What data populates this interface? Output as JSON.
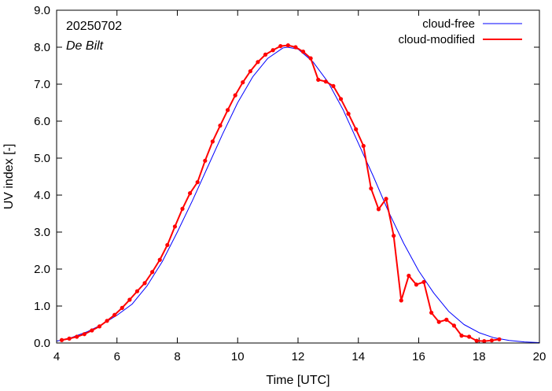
{
  "chart_data": {
    "type": "line",
    "xlabel": "Time  [UTC]",
    "ylabel": "UV index  [-]",
    "xlim": [
      4,
      20
    ],
    "ylim": [
      0,
      9
    ],
    "x_ticks": [
      4,
      6,
      8,
      10,
      12,
      14,
      16,
      18,
      20
    ],
    "y_ticks": [
      "0.0",
      "1.0",
      "2.0",
      "3.0",
      "4.0",
      "5.0",
      "6.0",
      "7.0",
      "8.0",
      "9.0"
    ],
    "grid": false,
    "legend_position": "top-right",
    "annotations": {
      "date": "20250702",
      "location": "De Bilt"
    },
    "series": [
      {
        "name": "cloud-free",
        "color": "#0000ff",
        "style": "smooth-line",
        "peak_x": 11.65,
        "peak_y": 8.0,
        "x": [
          4.0,
          4.5,
          5.0,
          5.5,
          6.0,
          6.5,
          7.0,
          7.5,
          8.0,
          8.5,
          9.0,
          9.5,
          10.0,
          10.5,
          11.0,
          11.5,
          11.65,
          12.0,
          12.5,
          13.0,
          13.5,
          14.0,
          14.5,
          15.0,
          15.5,
          16.0,
          16.5,
          17.0,
          17.5,
          18.0,
          18.5,
          19.0,
          19.5,
          20.0
        ],
        "y": [
          0.05,
          0.15,
          0.3,
          0.5,
          0.75,
          1.05,
          1.55,
          2.2,
          3.0,
          3.85,
          4.75,
          5.65,
          6.5,
          7.2,
          7.7,
          7.98,
          8.0,
          7.95,
          7.6,
          7.05,
          6.3,
          5.4,
          4.5,
          3.55,
          2.7,
          1.95,
          1.35,
          0.85,
          0.5,
          0.28,
          0.14,
          0.07,
          0.03,
          0.01
        ]
      },
      {
        "name": "cloud-modified",
        "color": "#ff0000",
        "style": "line-points",
        "x": [
          4.17,
          4.42,
          4.67,
          4.92,
          5.17,
          5.42,
          5.67,
          5.92,
          6.17,
          6.42,
          6.67,
          6.92,
          7.17,
          7.42,
          7.67,
          7.92,
          8.17,
          8.42,
          8.67,
          8.92,
          9.17,
          9.42,
          9.67,
          9.92,
          10.17,
          10.42,
          10.67,
          10.92,
          11.17,
          11.42,
          11.67,
          11.92,
          12.17,
          12.42,
          12.67,
          12.92,
          13.17,
          13.42,
          13.67,
          13.92,
          14.17,
          14.42,
          14.67,
          14.92,
          15.17,
          15.42,
          15.67,
          15.92,
          16.17,
          16.42,
          16.67,
          16.92,
          17.17,
          17.42,
          17.67,
          17.92,
          18.17,
          18.42,
          18.67
        ],
        "y": [
          0.08,
          0.12,
          0.17,
          0.24,
          0.34,
          0.45,
          0.6,
          0.76,
          0.95,
          1.17,
          1.4,
          1.62,
          1.92,
          2.25,
          2.65,
          3.15,
          3.63,
          4.05,
          4.35,
          4.93,
          5.45,
          5.88,
          6.3,
          6.7,
          7.05,
          7.35,
          7.6,
          7.8,
          7.92,
          8.03,
          8.05,
          8.0,
          7.88,
          7.7,
          7.12,
          7.07,
          6.95,
          6.6,
          6.2,
          5.78,
          5.33,
          4.18,
          3.62,
          3.9,
          2.9,
          1.15,
          1.82,
          1.58,
          1.65,
          0.82,
          0.57,
          0.63,
          0.47,
          0.2,
          0.17,
          0.06,
          0.05,
          0.07,
          0.1
        ]
      }
    ]
  }
}
